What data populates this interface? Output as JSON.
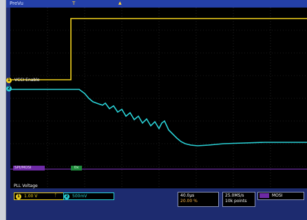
{
  "topbar": {
    "run_state": "PreVu",
    "trigger_pos_marker": "T",
    "tb_marker": "▲"
  },
  "channels": {
    "ch1": {
      "tag": "1",
      "name": "VCCI Enable",
      "color": "#f2d21e",
      "scale": "1.00 V",
      "offset_icon": "ᛏ"
    },
    "ch2": {
      "tag": "2",
      "name": "",
      "color": "#2ad4d9",
      "scale": "500mV"
    },
    "bus": {
      "name": "SPI/MOSI",
      "value": "0x",
      "color": "#6e2aa6"
    },
    "ref": {
      "name": "PLL Voltage"
    }
  },
  "timebase": {
    "scale": "40.0µs",
    "position": "20.00 %"
  },
  "acquisition": {
    "rate": "25.0MS/s",
    "record": "10k points"
  },
  "trigger": {
    "source": "MOSI"
  }
}
